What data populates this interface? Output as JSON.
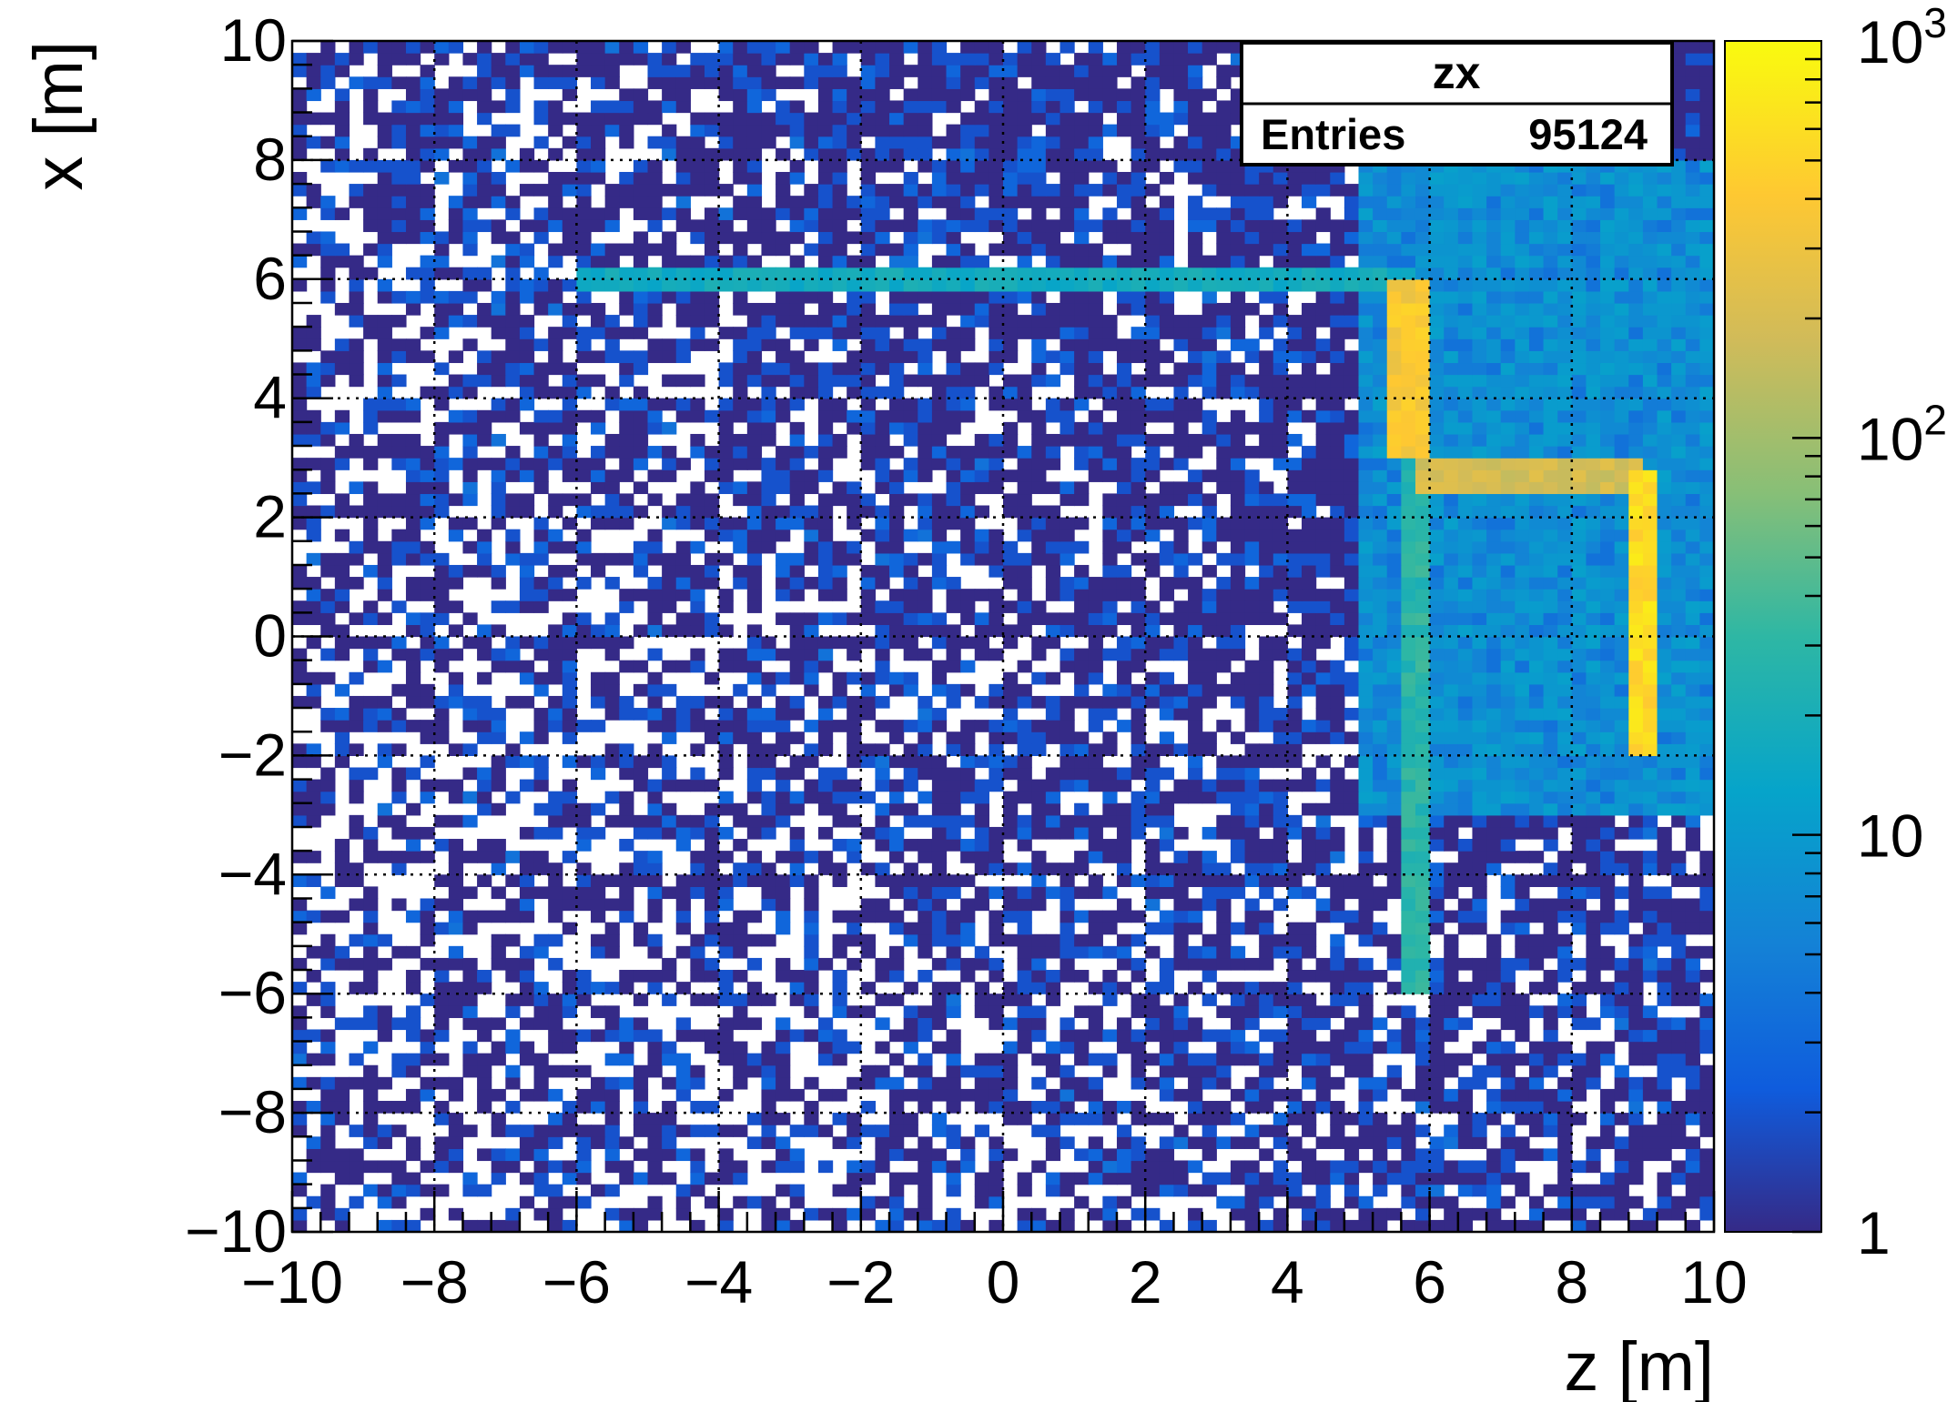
{
  "chart_data": {
    "type": "heatmap",
    "title": "",
    "stats_box": {
      "title": "zx",
      "entries_label": "Entries",
      "entries_value": "95124"
    },
    "xlabel": "z [m]",
    "ylabel": "x [m]",
    "xlim": [
      -10,
      10
    ],
    "ylim": [
      -10,
      10
    ],
    "x_ticks": [
      "−10",
      "−8",
      "−6",
      "−4",
      "−2",
      "0",
      "2",
      "4",
      "6",
      "8",
      "10"
    ],
    "y_ticks": [
      "−10",
      "−8",
      "−6",
      "−4",
      "−2",
      "0",
      "2",
      "4",
      "6",
      "8",
      "10"
    ],
    "x_tick_values": [
      -10,
      -8,
      -6,
      -4,
      -2,
      0,
      2,
      4,
      6,
      8,
      10
    ],
    "y_tick_values": [
      -10,
      -8,
      -6,
      -4,
      -2,
      0,
      2,
      4,
      6,
      8,
      10
    ],
    "grid": true,
    "colorbar": {
      "scale": "log",
      "range": [
        1,
        1000
      ],
      "labels": [
        {
          "value": 1,
          "base": "1",
          "exp": ""
        },
        {
          "value": 10,
          "base": "10",
          "exp": ""
        },
        {
          "value": 100,
          "base": "10",
          "exp": "2"
        },
        {
          "value": 1000,
          "base": "10",
          "exp": "3"
        }
      ],
      "palette": [
        "#352a87",
        "#0f5cdd",
        "#1481d6",
        "#06a4ca",
        "#2eb7a4",
        "#87bf77",
        "#d1bb59",
        "#fec832",
        "#f9fb0e"
      ]
    },
    "bins": {
      "nx": 100,
      "ny": 100
    },
    "description_features": [
      {
        "kind": "horizontal-band",
        "z_range": [
          -6.0,
          5.8
        ],
        "x_center": 6.0,
        "approx_count": 18
      },
      {
        "kind": "vertical-band",
        "z_center": 5.75,
        "x_range": [
          -6.0,
          6.0
        ],
        "approx_count": 30
      },
      {
        "kind": "vertical-band-peak",
        "z_center": 5.7,
        "x_range": [
          3.0,
          6.0
        ],
        "approx_count": 400
      },
      {
        "kind": "horizontal-band",
        "z_range": [
          5.8,
          9.0
        ],
        "x_center": 2.75,
        "approx_count": 200
      },
      {
        "kind": "vertical-band-peak",
        "z_center": 8.95,
        "x_range": [
          -2.0,
          2.8
        ],
        "approx_count": 600
      },
      {
        "kind": "diffuse-region",
        "z_range": [
          5.0,
          10.0
        ],
        "x_range": [
          -3.0,
          8.0
        ],
        "approx_count": 8
      },
      {
        "kind": "uniform-background",
        "approx_count": 1
      }
    ]
  }
}
